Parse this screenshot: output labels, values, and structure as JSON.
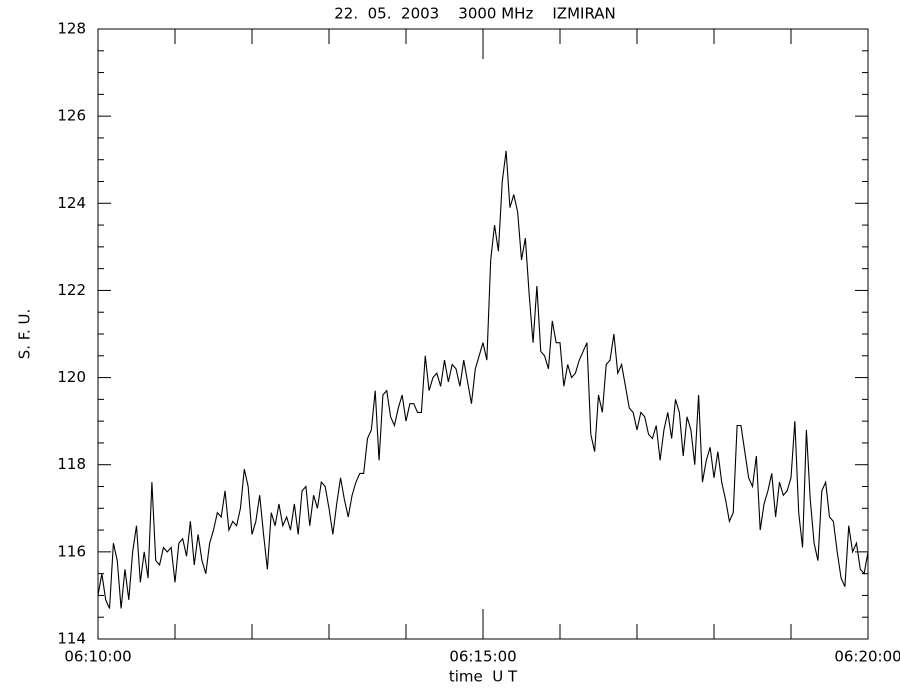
{
  "chart_data": {
    "type": "line",
    "title": "22.  05.  2003    3000 MHz    IZMIRAN",
    "ylabel": "S. F. U.",
    "xlabel": "time  U T",
    "color": "#000000",
    "xlim": [
      "06:10:00",
      "06:20:00"
    ],
    "xticks": [
      "06:10:00",
      "06:15:00",
      "06:20:00"
    ],
    "xminor_ticks": [
      "06:11:00",
      "06:12:00",
      "06:13:00",
      "06:14:00",
      "06:16:00",
      "06:17:00",
      "06:18:00",
      "06:19:00"
    ],
    "ylim": [
      114,
      128
    ],
    "yticks": [
      114,
      116,
      118,
      120,
      122,
      124,
      126,
      128
    ],
    "yminor_ticks": [
      114.5,
      115,
      115.5,
      116.5,
      117,
      117.5,
      118.5,
      119,
      119.5,
      120.5,
      121,
      121.5,
      122.5,
      123,
      123.5,
      124.5,
      125,
      125.5,
      126.5,
      127,
      127.5
    ],
    "grid": false,
    "x": [
      "06:10:00",
      "06:10:03",
      "06:10:06",
      "06:10:09",
      "06:10:12",
      "06:10:15",
      "06:10:18",
      "06:10:21",
      "06:10:24",
      "06:10:27",
      "06:10:30",
      "06:10:33",
      "06:10:36",
      "06:10:39",
      "06:10:42",
      "06:10:45",
      "06:10:48",
      "06:10:51",
      "06:10:54",
      "06:10:57",
      "06:11:00",
      "06:11:03",
      "06:11:06",
      "06:11:09",
      "06:11:12",
      "06:11:15",
      "06:11:18",
      "06:11:21",
      "06:11:24",
      "06:11:27",
      "06:11:30",
      "06:11:33",
      "06:11:36",
      "06:11:39",
      "06:11:42",
      "06:11:45",
      "06:11:48",
      "06:11:51",
      "06:11:54",
      "06:11:57",
      "06:12:00",
      "06:12:03",
      "06:12:06",
      "06:12:09",
      "06:12:12",
      "06:12:15",
      "06:12:18",
      "06:12:21",
      "06:12:24",
      "06:12:27",
      "06:12:30",
      "06:12:33",
      "06:12:36",
      "06:12:39",
      "06:12:42",
      "06:12:45",
      "06:12:48",
      "06:12:51",
      "06:12:54",
      "06:12:57",
      "06:13:00",
      "06:13:03",
      "06:13:06",
      "06:13:09",
      "06:13:12",
      "06:13:15",
      "06:13:18",
      "06:13:21",
      "06:13:24",
      "06:13:27",
      "06:13:30",
      "06:13:33",
      "06:13:36",
      "06:13:39",
      "06:13:42",
      "06:13:45",
      "06:13:48",
      "06:13:51",
      "06:13:54",
      "06:13:57",
      "06:14:00",
      "06:14:03",
      "06:14:06",
      "06:14:09",
      "06:14:12",
      "06:14:15",
      "06:14:18",
      "06:14:21",
      "06:14:24",
      "06:14:27",
      "06:14:30",
      "06:14:33",
      "06:14:36",
      "06:14:39",
      "06:14:42",
      "06:14:45",
      "06:14:48",
      "06:14:51",
      "06:14:54",
      "06:14:57",
      "06:15:00",
      "06:15:03",
      "06:15:06",
      "06:15:09",
      "06:15:12",
      "06:15:15",
      "06:15:18",
      "06:15:21",
      "06:15:24",
      "06:15:27",
      "06:15:30",
      "06:15:33",
      "06:15:36",
      "06:15:39",
      "06:15:42",
      "06:15:45",
      "06:15:48",
      "06:15:51",
      "06:15:54",
      "06:15:57",
      "06:16:00",
      "06:16:03",
      "06:16:06",
      "06:16:09",
      "06:16:12",
      "06:16:15",
      "06:16:18",
      "06:16:21",
      "06:16:24",
      "06:16:27",
      "06:16:30",
      "06:16:33",
      "06:16:36",
      "06:16:39",
      "06:16:42",
      "06:16:45",
      "06:16:48",
      "06:16:51",
      "06:16:54",
      "06:16:57",
      "06:17:00",
      "06:17:03",
      "06:17:06",
      "06:17:09",
      "06:17:12",
      "06:17:15",
      "06:17:18",
      "06:17:21",
      "06:17:24",
      "06:17:27",
      "06:17:30",
      "06:17:33",
      "06:17:36",
      "06:17:39",
      "06:17:42",
      "06:17:45",
      "06:17:48",
      "06:17:51",
      "06:17:54",
      "06:17:57",
      "06:18:00",
      "06:18:03",
      "06:18:06",
      "06:18:09",
      "06:18:12",
      "06:18:15",
      "06:18:18",
      "06:18:21",
      "06:18:24",
      "06:18:27",
      "06:18:30",
      "06:18:33",
      "06:18:36",
      "06:18:39",
      "06:18:42",
      "06:18:45",
      "06:18:48",
      "06:18:51",
      "06:18:54",
      "06:18:57",
      "06:19:00",
      "06:19:03",
      "06:19:06",
      "06:19:09",
      "06:19:12",
      "06:19:15",
      "06:19:18",
      "06:19:21",
      "06:19:24",
      "06:19:27",
      "06:19:30",
      "06:19:33",
      "06:19:36",
      "06:19:39",
      "06:19:42",
      "06:19:45",
      "06:19:48",
      "06:19:51",
      "06:19:54",
      "06:19:57",
      "06:20:00"
    ],
    "values": [
      115.0,
      115.5,
      114.9,
      114.7,
      116.2,
      115.8,
      114.7,
      115.6,
      114.9,
      116.0,
      116.6,
      115.3,
      116.0,
      115.4,
      117.6,
      115.8,
      115.7,
      116.1,
      116.0,
      116.1,
      115.3,
      116.2,
      116.3,
      115.9,
      116.7,
      115.7,
      116.4,
      115.8,
      115.5,
      116.2,
      116.5,
      116.9,
      116.8,
      117.4,
      116.5,
      116.7,
      116.6,
      117.0,
      117.9,
      117.5,
      116.4,
      116.7,
      117.3,
      116.4,
      115.6,
      116.9,
      116.6,
      117.1,
      116.6,
      116.8,
      116.5,
      117.1,
      116.4,
      117.4,
      117.5,
      116.6,
      117.3,
      117.0,
      117.6,
      117.5,
      117.0,
      116.4,
      117.1,
      117.7,
      117.2,
      116.8,
      117.3,
      117.6,
      117.8,
      117.8,
      118.6,
      118.8,
      119.7,
      118.1,
      119.6,
      119.7,
      119.1,
      118.9,
      119.3,
      119.6,
      119.0,
      119.4,
      119.4,
      119.2,
      119.2,
      120.5,
      119.7,
      120.0,
      120.1,
      119.8,
      120.4,
      119.9,
      120.3,
      120.2,
      119.8,
      120.4,
      119.9,
      119.4,
      120.2,
      120.5,
      120.8,
      120.4,
      122.7,
      123.5,
      122.9,
      124.5,
      125.2,
      123.9,
      124.2,
      123.8,
      122.7,
      123.2,
      121.9,
      120.8,
      122.1,
      120.6,
      120.5,
      120.2,
      121.3,
      120.8,
      120.8,
      119.8,
      120.3,
      120.0,
      120.1,
      120.4,
      120.6,
      120.8,
      118.7,
      118.3,
      119.6,
      119.2,
      120.3,
      120.4,
      121.0,
      120.1,
      120.3,
      119.8,
      119.3,
      119.2,
      118.8,
      119.2,
      119.1,
      118.7,
      118.6,
      118.9,
      118.1,
      118.8,
      119.2,
      118.6,
      119.5,
      119.2,
      118.2,
      119.1,
      118.8,
      118.0,
      119.6,
      117.6,
      118.1,
      118.4,
      117.7,
      118.3,
      117.6,
      117.2,
      116.7,
      116.9,
      118.9,
      118.9,
      118.3,
      117.7,
      117.5,
      118.2,
      116.5,
      117.1,
      117.4,
      117.8,
      116.8,
      117.6,
      117.3,
      117.4,
      117.7,
      119.0,
      116.9,
      116.1,
      118.8,
      117.2,
      116.2,
      115.8,
      117.4,
      117.6,
      116.8,
      116.7,
      116.0,
      115.4,
      115.2,
      116.6,
      116.0,
      116.2,
      115.6,
      115.5,
      116.0
    ]
  }
}
